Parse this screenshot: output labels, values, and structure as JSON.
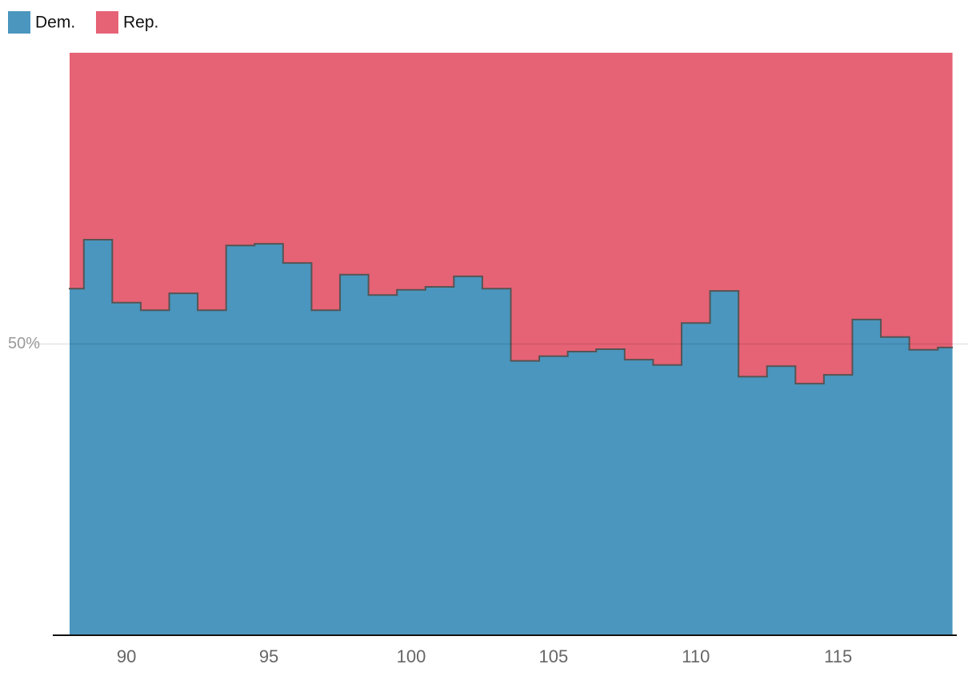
{
  "chart_data": {
    "type": "stacked-step-area",
    "x": [
      88,
      89,
      90,
      91,
      92,
      93,
      94,
      95,
      96,
      97,
      98,
      99,
      100,
      101,
      102,
      103,
      104,
      105,
      106,
      107,
      108,
      109,
      110,
      111,
      112,
      113,
      114,
      115,
      116,
      117,
      118,
      119
    ],
    "series": [
      {
        "name": "Dem.",
        "color": "#4a96be",
        "values": [
          59.5,
          67.9,
          57.1,
          55.8,
          58.7,
          55.8,
          66.9,
          67.2,
          63.9,
          55.8,
          61.9,
          58.4,
          59.3,
          59.8,
          61.6,
          59.5,
          47.1,
          47.9,
          48.7,
          49.1,
          47.3,
          46.4,
          53.6,
          59.1,
          44.4,
          46.2,
          43.2,
          44.7,
          54.2,
          51.2,
          49.0,
          49.4
        ]
      },
      {
        "name": "Rep.",
        "color": "#e66275",
        "values": [
          40.5,
          32.1,
          42.9,
          44.2,
          41.3,
          44.2,
          33.1,
          32.8,
          36.1,
          44.2,
          38.1,
          41.6,
          40.7,
          40.2,
          38.4,
          40.5,
          52.9,
          52.1,
          51.3,
          50.9,
          52.7,
          53.6,
          46.4,
          40.9,
          55.6,
          53.8,
          56.8,
          55.3,
          45.8,
          48.8,
          51.0,
          50.6
        ]
      }
    ],
    "xlim": [
      88,
      119
    ],
    "xticks": [
      90,
      95,
      100,
      105,
      110,
      115
    ],
    "ylim": [
      0,
      100
    ],
    "yticks": [
      {
        "value": 50,
        "label": "50%"
      }
    ],
    "step": "mid",
    "grid": true,
    "legend": "top-left"
  }
}
